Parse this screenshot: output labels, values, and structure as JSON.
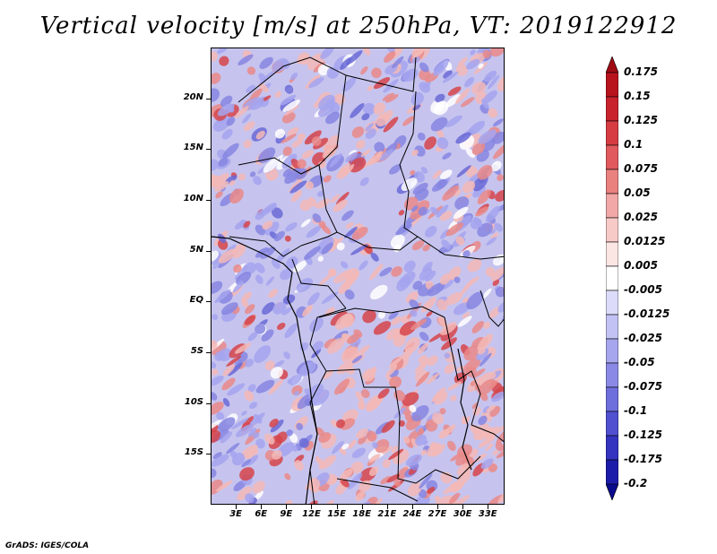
{
  "title": "Vertical velocity [m/s] at 250hPa, VT: 2019122912",
  "credit": "GrADS: IGES/COLA",
  "map": {
    "region": "Central Africa",
    "lat_range": [
      -20,
      25
    ],
    "lon_range": [
      0,
      35
    ],
    "lat_ticks": [
      "20N",
      "15N",
      "10N",
      "5N",
      "EQ",
      "5S",
      "10S",
      "15S"
    ],
    "lon_ticks": [
      "3E",
      "6E",
      "9E",
      "12E",
      "15E",
      "18E",
      "21E",
      "24E",
      "27E",
      "30E",
      "33E"
    ]
  },
  "colorbar": {
    "labels": [
      "0.175",
      "0.15",
      "0.125",
      "0.1",
      "0.075",
      "0.05",
      "0.025",
      "0.0125",
      "0.005",
      "-0.005",
      "-0.0125",
      "-0.025",
      "-0.05",
      "-0.075",
      "-0.1",
      "-0.125",
      "-0.175",
      "-0.2"
    ],
    "colors": [
      "#a00a14",
      "#b8141e",
      "#c8232d",
      "#d63c42",
      "#e05a5e",
      "#e9817f",
      "#f1a8a6",
      "#f7cac8",
      "#fce6e4",
      "#ffffff",
      "#dcdcfa",
      "#c2c2f4",
      "#a6a6ee",
      "#8a8ae6",
      "#6e6edc",
      "#5050d0",
      "#3434c0",
      "#1c1caa",
      "#0a0a8c"
    ]
  }
}
